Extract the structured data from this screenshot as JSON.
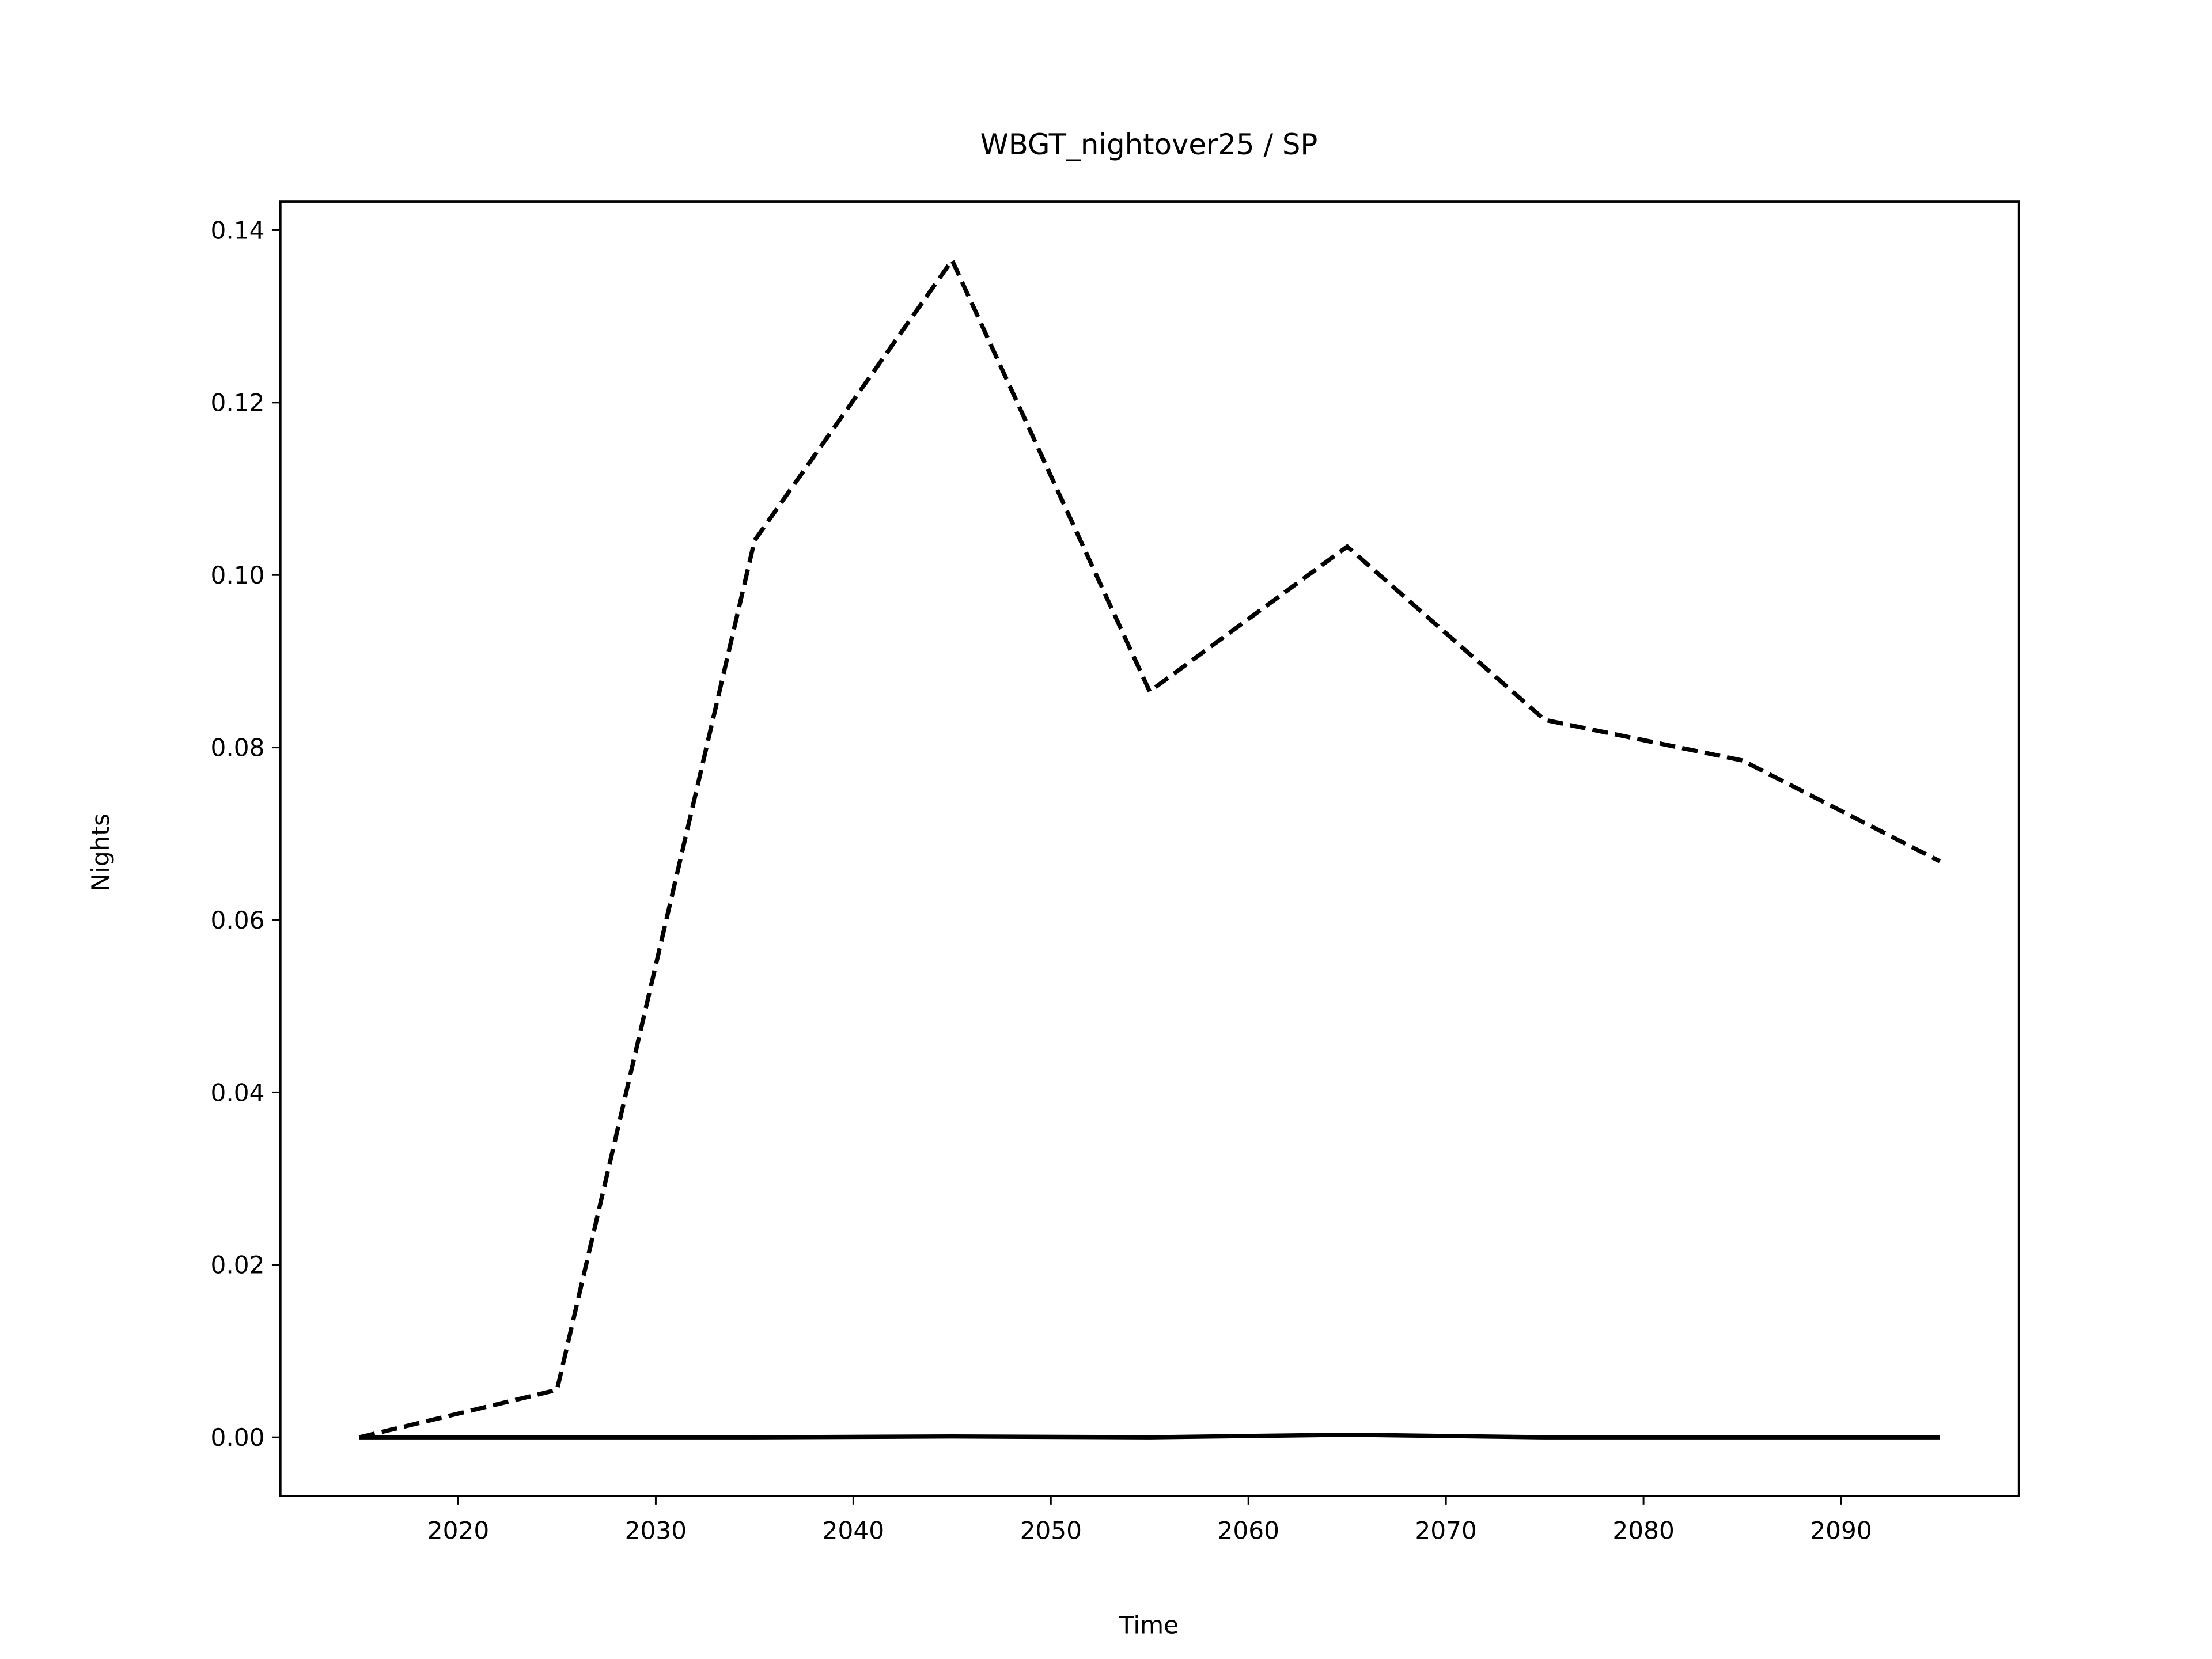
{
  "chart_data": {
    "type": "line",
    "title": "WBGT_nightover25 / SP",
    "x_label": "Time",
    "y_label": "Nights",
    "x": [
      2015,
      2025,
      2035,
      2045,
      2055,
      2065,
      2075,
      2085,
      2095
    ],
    "series": [
      {
        "color": "#000000",
        "dash": "dashed",
        "values": [
          0,
          0.0055,
          0.104,
          0.1365,
          0.0865,
          0.1033,
          0.0832,
          0.0785,
          0.0668
        ]
      },
      {
        "color": "#000000",
        "dash": "solid",
        "values": [
          0,
          0,
          0,
          0.0001,
          0,
          0.0003,
          0,
          0,
          0
        ]
      }
    ],
    "xlim": [
      2011,
      2099
    ],
    "ylim": [
      -0.0068,
      0.1433
    ],
    "xticks": [
      2020,
      2030,
      2040,
      2050,
      2060,
      2070,
      2080,
      2090
    ],
    "yticks": [
      {
        "value": 0,
        "label": "0.00"
      },
      {
        "value": 0.02,
        "label": "0.02"
      },
      {
        "value": 0.04,
        "label": "0.04"
      },
      {
        "value": 0.06,
        "label": "0.06"
      },
      {
        "value": 0.08,
        "label": "0.08"
      },
      {
        "value": 0.1,
        "label": "0.10"
      },
      {
        "value": 0.12,
        "label": "0.12"
      },
      {
        "value": 0.14,
        "label": "0.14"
      }
    ]
  }
}
